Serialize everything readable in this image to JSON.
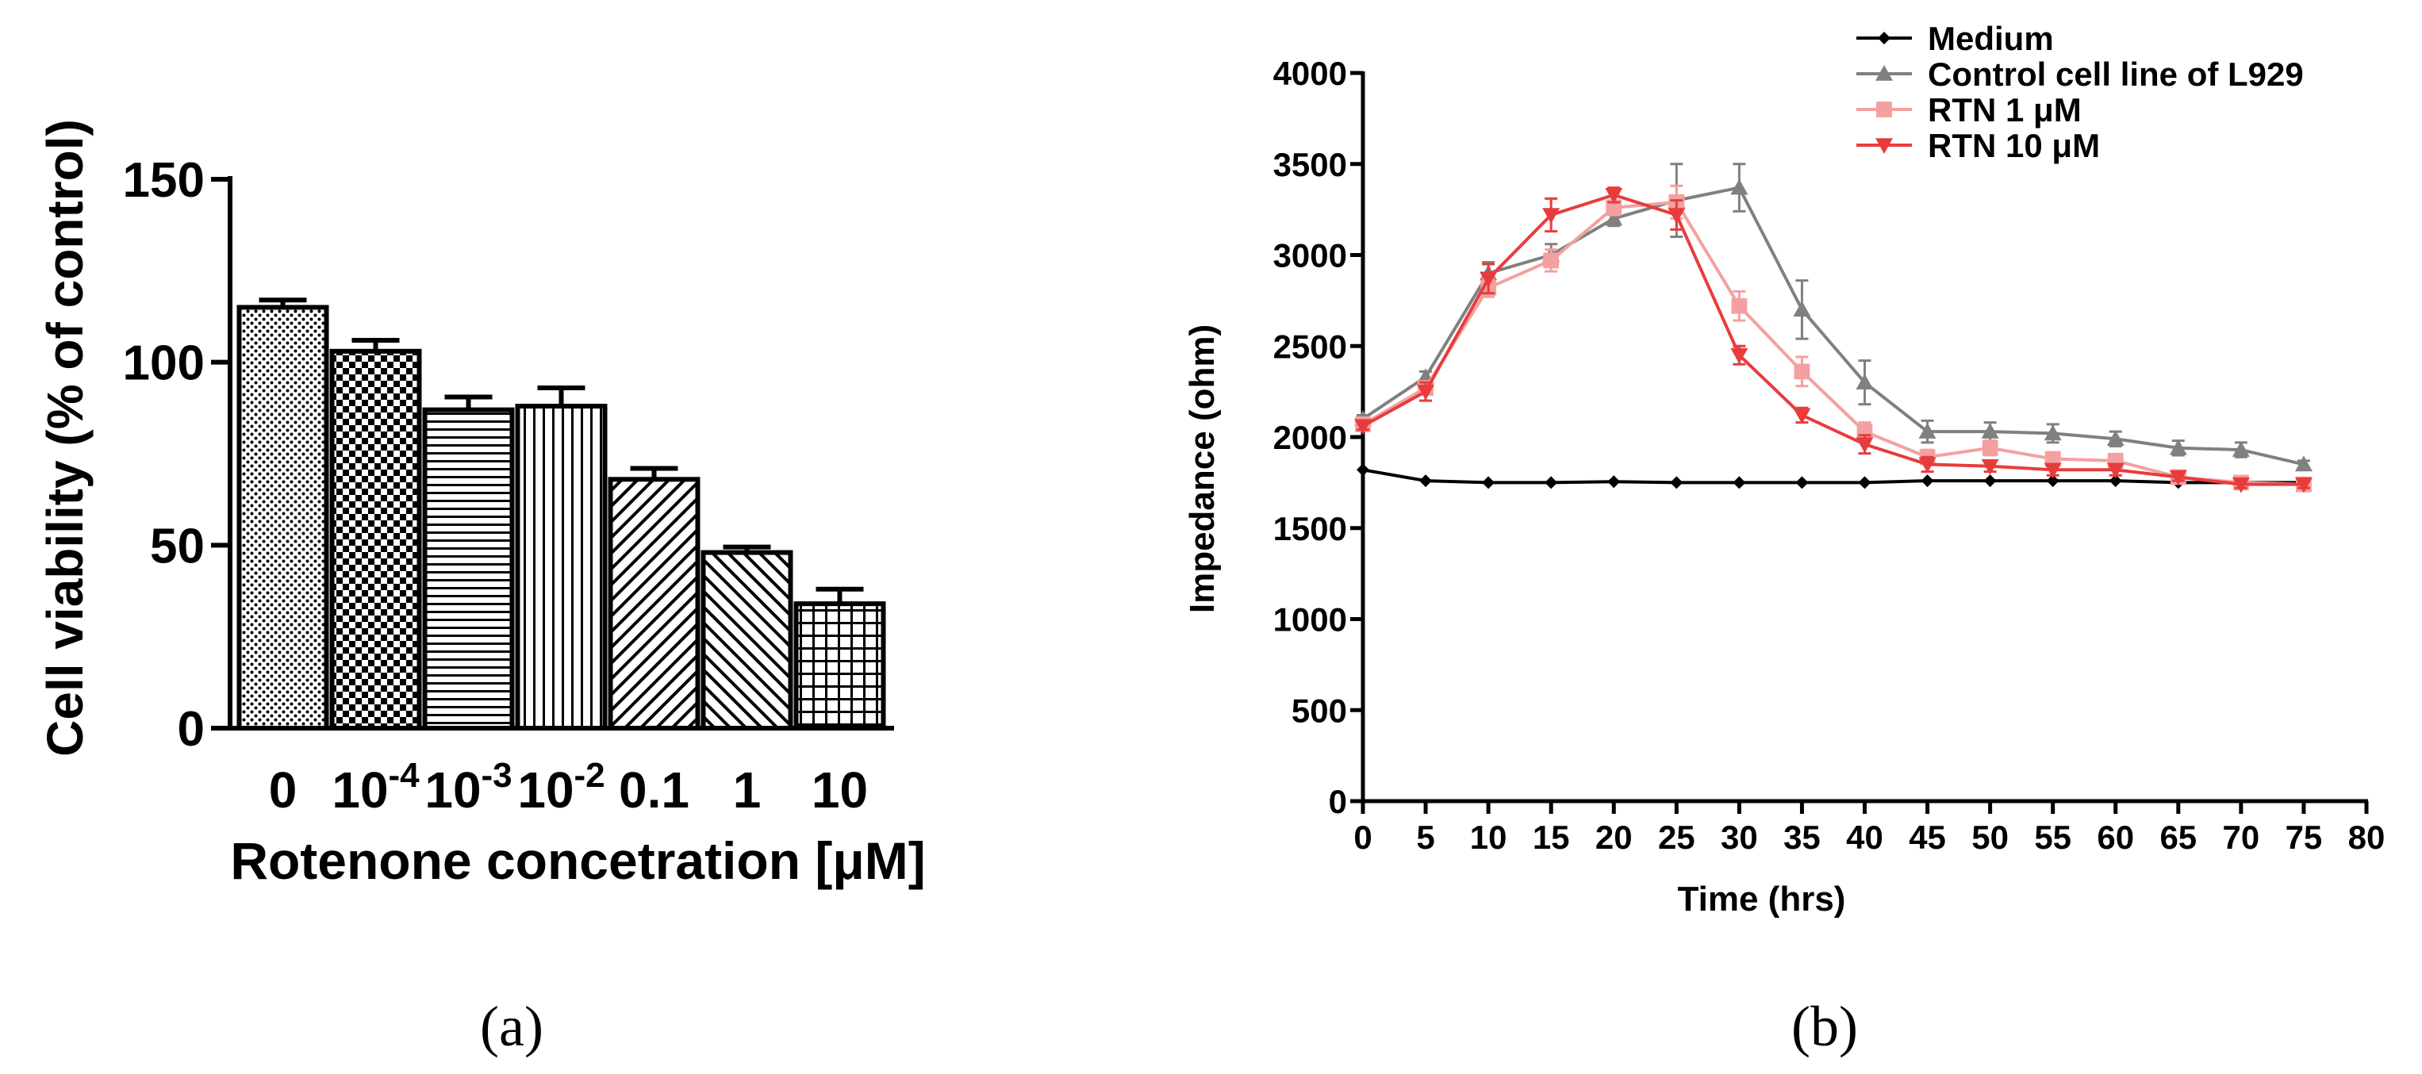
{
  "chart_data": [
    {
      "type": "bar",
      "panel_label": "(a)",
      "ylabel": "Cell viability (% of control)",
      "xlabel": "Rotenone concetration [μM]",
      "ylim": [
        0,
        150
      ],
      "yticks": [
        "0",
        "50",
        "100",
        "150"
      ],
      "categories": [
        {
          "base": "0",
          "exp": ""
        },
        {
          "base": "10",
          "exp": "-4"
        },
        {
          "base": "10",
          "exp": "-3"
        },
        {
          "base": "10",
          "exp": "-2"
        },
        {
          "base": "0.1",
          "exp": ""
        },
        {
          "base": "1",
          "exp": ""
        },
        {
          "base": "10",
          "exp": ""
        }
      ],
      "values": [
        115,
        103,
        87,
        88,
        68,
        48,
        34
      ],
      "errors": [
        2,
        3,
        3.5,
        5,
        3,
        1.5,
        4
      ],
      "patterns": [
        "dots",
        "checker",
        "hlines",
        "vlines",
        "diag-fwd",
        "diag-back",
        "grid"
      ]
    },
    {
      "type": "line",
      "panel_label": "(b)",
      "ylabel": "Impedance (ohm)",
      "xlabel": "Time (hrs)",
      "xlim": [
        0,
        80
      ],
      "ylim": [
        0,
        4000
      ],
      "xticks": [
        "0",
        "5",
        "10",
        "15",
        "20",
        "25",
        "30",
        "35",
        "40",
        "45",
        "50",
        "55",
        "60",
        "65",
        "70",
        "75",
        "80"
      ],
      "yticks": [
        "0",
        "500",
        "1000",
        "1500",
        "2000",
        "2500",
        "3000",
        "3500",
        "4000"
      ],
      "x": [
        0,
        5,
        10,
        15,
        20,
        25,
        30,
        35,
        40,
        45,
        50,
        55,
        60,
        65,
        70,
        75
      ],
      "series": [
        {
          "name": "Medium",
          "color": "#000000",
          "marker": "diamond",
          "values": [
            1820,
            1760,
            1750,
            1750,
            1755,
            1750,
            1750,
            1750,
            1750,
            1760,
            1760,
            1760,
            1760,
            1750,
            1750,
            1750
          ],
          "errors": [
            0,
            0,
            0,
            0,
            0,
            0,
            0,
            0,
            0,
            0,
            0,
            0,
            0,
            0,
            0,
            0
          ]
        },
        {
          "name": "Control cell line of L929",
          "color": "#808080",
          "marker": "triangle-up",
          "values": [
            2100,
            2330,
            2900,
            3000,
            3200,
            3300,
            3370,
            2700,
            2300,
            2030,
            2030,
            2020,
            1990,
            1940,
            1930,
            1850
          ],
          "errors": [
            20,
            30,
            60,
            60,
            40,
            200,
            130,
            160,
            120,
            60,
            50,
            50,
            40,
            40,
            40,
            20
          ]
        },
        {
          "name": "RTN 1 μM",
          "color": "#f4a0a0",
          "marker": "square",
          "values": [
            2070,
            2270,
            2820,
            2970,
            3260,
            3290,
            2720,
            2360,
            2030,
            1890,
            1940,
            1880,
            1870,
            1780,
            1750,
            1740
          ],
          "errors": [
            20,
            30,
            50,
            60,
            40,
            90,
            80,
            80,
            50,
            40,
            40,
            30,
            30,
            20,
            20,
            20
          ]
        },
        {
          "name": "RTN 10 μM",
          "color": "#e83c3c",
          "marker": "triangle-down",
          "values": [
            2060,
            2250,
            2870,
            3220,
            3330,
            3220,
            2450,
            2120,
            1960,
            1850,
            1840,
            1820,
            1820,
            1780,
            1740,
            1740
          ],
          "errors": [
            20,
            50,
            80,
            90,
            40,
            80,
            50,
            40,
            50,
            40,
            30,
            30,
            30,
            20,
            20,
            20
          ]
        }
      ],
      "legend_position": "top-right"
    }
  ]
}
